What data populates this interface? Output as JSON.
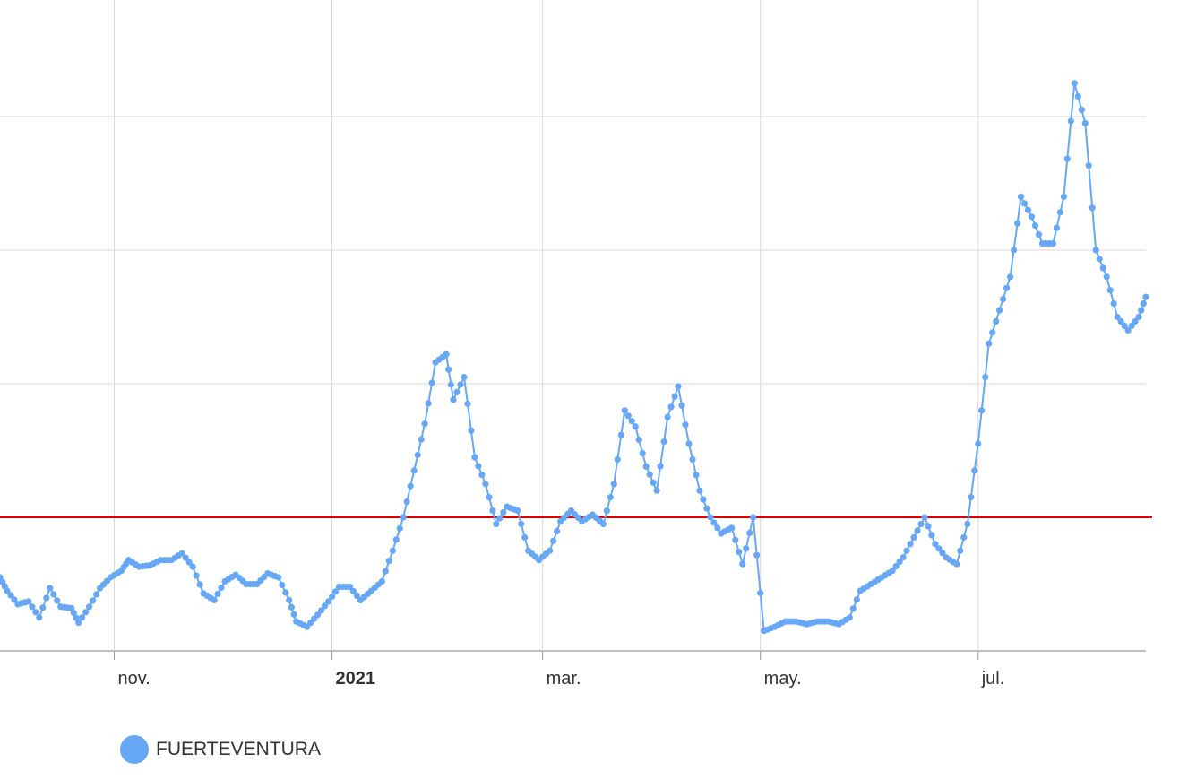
{
  "chart_data": {
    "type": "line",
    "title": "",
    "xlabel": "",
    "ylabel": "",
    "x_tick_labels": [
      {
        "label": "nov.",
        "date": "2020-11-01",
        "bold": false
      },
      {
        "label": "2021",
        "date": "2021-01-01",
        "bold": true
      },
      {
        "label": "mar.",
        "date": "2021-03-01",
        "bold": false
      },
      {
        "label": "may.",
        "date": "2021-05-01",
        "bold": false
      },
      {
        "label": "jul.",
        "date": "2021-07-01",
        "bold": false
      }
    ],
    "xlim": [
      "2020-09-30",
      "2021-08-17"
    ],
    "ylim": [
      0,
      400
    ],
    "y_gridlines": [
      0,
      100,
      200,
      300,
      400
    ],
    "y_tick_labels_visible": false,
    "reference_line": {
      "value": 100,
      "color": "#e00000"
    },
    "grid": true,
    "legend_position": "bottom-left",
    "series": [
      {
        "name": "FUERTEVENTURA",
        "color": "#66a8f5",
        "points": [
          [
            "2020-09-30",
            55
          ],
          [
            "2020-10-02",
            45
          ],
          [
            "2020-10-05",
            35
          ],
          [
            "2020-10-08",
            37
          ],
          [
            "2020-10-11",
            25
          ],
          [
            "2020-10-14",
            47
          ],
          [
            "2020-10-17",
            33
          ],
          [
            "2020-10-20",
            32
          ],
          [
            "2020-10-22",
            21
          ],
          [
            "2020-10-25",
            33
          ],
          [
            "2020-10-28",
            47
          ],
          [
            "2020-10-31",
            55
          ],
          [
            "2020-11-03",
            60
          ],
          [
            "2020-11-05",
            68
          ],
          [
            "2020-11-08",
            63
          ],
          [
            "2020-11-11",
            64
          ],
          [
            "2020-11-14",
            68
          ],
          [
            "2020-11-17",
            68
          ],
          [
            "2020-11-20",
            73
          ],
          [
            "2020-11-23",
            63
          ],
          [
            "2020-11-26",
            43
          ],
          [
            "2020-11-29",
            38
          ],
          [
            "2020-12-02",
            52
          ],
          [
            "2020-12-05",
            57
          ],
          [
            "2020-12-08",
            50
          ],
          [
            "2020-12-11",
            50
          ],
          [
            "2020-12-14",
            58
          ],
          [
            "2020-12-17",
            55
          ],
          [
            "2020-12-20",
            38
          ],
          [
            "2020-12-22",
            22
          ],
          [
            "2020-12-25",
            18
          ],
          [
            "2020-12-28",
            27
          ],
          [
            "2020-12-31",
            37
          ],
          [
            "2021-01-03",
            48
          ],
          [
            "2021-01-06",
            48
          ],
          [
            "2021-01-09",
            38
          ],
          [
            "2021-01-12",
            45
          ],
          [
            "2021-01-15",
            52
          ],
          [
            "2021-01-18",
            75
          ],
          [
            "2021-01-21",
            100
          ],
          [
            "2021-01-24",
            135
          ],
          [
            "2021-01-27",
            170
          ],
          [
            "2021-01-30",
            216
          ],
          [
            "2021-02-02",
            222
          ],
          [
            "2021-02-04",
            188
          ],
          [
            "2021-02-07",
            205
          ],
          [
            "2021-02-10",
            145
          ],
          [
            "2021-02-13",
            125
          ],
          [
            "2021-02-16",
            95
          ],
          [
            "2021-02-19",
            108
          ],
          [
            "2021-02-22",
            105
          ],
          [
            "2021-02-25",
            75
          ],
          [
            "2021-02-28",
            68
          ],
          [
            "2021-03-03",
            75
          ],
          [
            "2021-03-06",
            97
          ],
          [
            "2021-03-09",
            105
          ],
          [
            "2021-03-12",
            97
          ],
          [
            "2021-03-15",
            102
          ],
          [
            "2021-03-18",
            95
          ],
          [
            "2021-03-21",
            125
          ],
          [
            "2021-03-24",
            180
          ],
          [
            "2021-03-27",
            168
          ],
          [
            "2021-03-30",
            138
          ],
          [
            "2021-04-02",
            120
          ],
          [
            "2021-04-05",
            175
          ],
          [
            "2021-04-08",
            198
          ],
          [
            "2021-04-11",
            155
          ],
          [
            "2021-04-14",
            120
          ],
          [
            "2021-04-17",
            100
          ],
          [
            "2021-04-20",
            88
          ],
          [
            "2021-04-23",
            92
          ],
          [
            "2021-04-26",
            65
          ],
          [
            "2021-04-29",
            100
          ],
          [
            "2021-05-02",
            15
          ],
          [
            "2021-05-05",
            18
          ],
          [
            "2021-05-08",
            22
          ],
          [
            "2021-05-11",
            22
          ],
          [
            "2021-05-14",
            20
          ],
          [
            "2021-05-17",
            22
          ],
          [
            "2021-05-20",
            22
          ],
          [
            "2021-05-23",
            20
          ],
          [
            "2021-05-26",
            25
          ],
          [
            "2021-05-29",
            45
          ],
          [
            "2021-06-01",
            50
          ],
          [
            "2021-06-04",
            55
          ],
          [
            "2021-06-07",
            60
          ],
          [
            "2021-06-10",
            70
          ],
          [
            "2021-06-13",
            85
          ],
          [
            "2021-06-16",
            100
          ],
          [
            "2021-06-19",
            80
          ],
          [
            "2021-06-22",
            70
          ],
          [
            "2021-06-25",
            65
          ],
          [
            "2021-06-28",
            95
          ],
          [
            "2021-07-01",
            155
          ],
          [
            "2021-07-04",
            230
          ],
          [
            "2021-07-07",
            255
          ],
          [
            "2021-07-10",
            280
          ],
          [
            "2021-07-13",
            340
          ],
          [
            "2021-07-16",
            325
          ],
          [
            "2021-07-19",
            305
          ],
          [
            "2021-07-22",
            305
          ],
          [
            "2021-07-25",
            340
          ],
          [
            "2021-07-28",
            425
          ],
          [
            "2021-07-31",
            395
          ],
          [
            "2021-08-03",
            300
          ],
          [
            "2021-08-06",
            280
          ],
          [
            "2021-08-09",
            250
          ],
          [
            "2021-08-12",
            240
          ],
          [
            "2021-08-15",
            250
          ],
          [
            "2021-08-17",
            265
          ]
        ]
      }
    ]
  },
  "legend": {
    "label": "FUERTEVENTURA",
    "color": "#66a8f5"
  }
}
